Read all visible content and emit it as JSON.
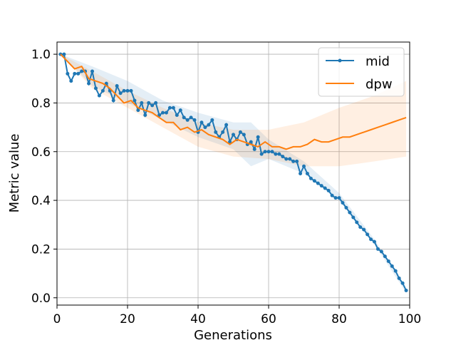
{
  "chart_data": {
    "type": "line",
    "xlabel": "Generations",
    "ylabel": "Metric value",
    "xlim": [
      0,
      100
    ],
    "ylim": [
      -0.03,
      1.05
    ],
    "xticks": [
      0,
      20,
      40,
      60,
      80,
      100
    ],
    "yticks": [
      {
        "value": 0,
        "label": "0.0"
      },
      {
        "value": 0.2,
        "label": "0.2"
      },
      {
        "value": 0.4,
        "label": "0.4"
      },
      {
        "value": 0.6,
        "label": "0.6"
      },
      {
        "value": 0.8,
        "label": "0.8"
      },
      {
        "value": 1,
        "label": "1.0"
      }
    ],
    "grid": true,
    "legend": "upper right",
    "series": [
      {
        "name": "mid",
        "color": "#1f77b4",
        "marker": true,
        "x": [
          1,
          2,
          3,
          4,
          5,
          6,
          7,
          8,
          9,
          10,
          11,
          12,
          13,
          14,
          15,
          16,
          17,
          18,
          19,
          20,
          21,
          22,
          23,
          24,
          25,
          26,
          27,
          28,
          29,
          30,
          31,
          32,
          33,
          34,
          35,
          36,
          37,
          38,
          39,
          40,
          41,
          42,
          43,
          44,
          45,
          46,
          47,
          48,
          49,
          50,
          51,
          52,
          53,
          54,
          55,
          56,
          57,
          58,
          59,
          60,
          61,
          62,
          63,
          64,
          65,
          66,
          67,
          68,
          69,
          70,
          71,
          72,
          73,
          74,
          75,
          76,
          77,
          78,
          79,
          80,
          81,
          82,
          83,
          84,
          85,
          86,
          87,
          88,
          89,
          90,
          91,
          92,
          93,
          94,
          95,
          96,
          97,
          98,
          99
        ],
        "values": [
          1.0,
          1.0,
          0.92,
          0.89,
          0.92,
          0.92,
          0.93,
          0.93,
          0.88,
          0.93,
          0.86,
          0.83,
          0.85,
          0.88,
          0.85,
          0.81,
          0.87,
          0.84,
          0.85,
          0.85,
          0.85,
          0.81,
          0.77,
          0.8,
          0.75,
          0.8,
          0.79,
          0.8,
          0.75,
          0.76,
          0.76,
          0.78,
          0.78,
          0.75,
          0.77,
          0.74,
          0.73,
          0.74,
          0.73,
          0.68,
          0.72,
          0.7,
          0.71,
          0.73,
          0.68,
          0.66,
          0.68,
          0.71,
          0.64,
          0.67,
          0.65,
          0.68,
          0.67,
          0.63,
          0.64,
          0.61,
          0.66,
          0.59,
          0.6,
          0.6,
          0.6,
          0.59,
          0.59,
          0.58,
          0.57,
          0.57,
          0.56,
          0.56,
          0.51,
          0.54,
          0.51,
          0.49,
          0.48,
          0.47,
          0.46,
          0.45,
          0.44,
          0.42,
          0.41,
          0.41,
          0.39,
          0.37,
          0.35,
          0.33,
          0.31,
          0.29,
          0.28,
          0.26,
          0.24,
          0.23,
          0.2,
          0.19,
          0.17,
          0.15,
          0.13,
          0.11,
          0.08,
          0.06,
          0.03
        ],
        "band": {
          "x": [
            1,
            10,
            20,
            30,
            40,
            50,
            55,
            60,
            70,
            80,
            90,
            99
          ],
          "lower": [
            1.0,
            0.87,
            0.8,
            0.73,
            0.66,
            0.61,
            0.54,
            0.57,
            0.51,
            0.4,
            0.22,
            0.02
          ],
          "upper": [
            1.0,
            0.95,
            0.89,
            0.81,
            0.76,
            0.72,
            0.72,
            0.65,
            0.56,
            0.43,
            0.24,
            0.04
          ]
        }
      },
      {
        "name": "dpw",
        "color": "#ff7f0e",
        "marker": false,
        "x": [
          1,
          3,
          5,
          7,
          9,
          11,
          13,
          15,
          17,
          19,
          21,
          23,
          25,
          27,
          29,
          31,
          33,
          35,
          37,
          39,
          41,
          43,
          45,
          47,
          49,
          51,
          53,
          55,
          57,
          59,
          61,
          63,
          65,
          67,
          69,
          71,
          73,
          75,
          77,
          79,
          81,
          83,
          85,
          87,
          89,
          91,
          93,
          95,
          97,
          99
        ],
        "values": [
          1.0,
          0.97,
          0.94,
          0.95,
          0.9,
          0.89,
          0.88,
          0.86,
          0.83,
          0.8,
          0.81,
          0.78,
          0.77,
          0.76,
          0.74,
          0.72,
          0.72,
          0.69,
          0.7,
          0.68,
          0.69,
          0.67,
          0.66,
          0.65,
          0.63,
          0.65,
          0.64,
          0.63,
          0.62,
          0.64,
          0.62,
          0.62,
          0.61,
          0.62,
          0.62,
          0.63,
          0.65,
          0.64,
          0.64,
          0.65,
          0.66,
          0.66,
          0.67,
          0.68,
          0.69,
          0.7,
          0.71,
          0.72,
          0.73,
          0.74
        ],
        "band": {
          "x": [
            1,
            10,
            20,
            30,
            40,
            50,
            60,
            70,
            80,
            90,
            99
          ],
          "lower": [
            1.0,
            0.86,
            0.78,
            0.7,
            0.62,
            0.58,
            0.57,
            0.54,
            0.54,
            0.56,
            0.58
          ],
          "upper": [
            1.0,
            0.93,
            0.85,
            0.78,
            0.72,
            0.69,
            0.69,
            0.72,
            0.78,
            0.83,
            0.89
          ]
        }
      }
    ]
  }
}
